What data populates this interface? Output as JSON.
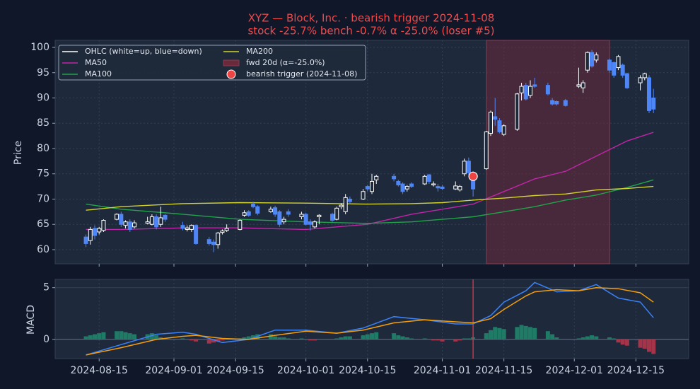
{
  "chart_data": [
    {
      "type": "candlestick",
      "title": "XYZ — Block, Inc. · bearish trigger 2024-11-08",
      "subtitle": "stock -25.7%   bench -0.7%   α -25.0% (loser #5)",
      "ylabel": "Price",
      "x": [
        "2024-08-12",
        "2024-08-13",
        "2024-08-14",
        "2024-08-15",
        "2024-08-16",
        "2024-08-19",
        "2024-08-20",
        "2024-08-21",
        "2024-08-22",
        "2024-08-23",
        "2024-08-26",
        "2024-08-27",
        "2024-08-28",
        "2024-08-29",
        "2024-08-30",
        "2024-09-03",
        "2024-09-04",
        "2024-09-05",
        "2024-09-06",
        "2024-09-09",
        "2024-09-10",
        "2024-09-11",
        "2024-09-12",
        "2024-09-13",
        "2024-09-16",
        "2024-09-17",
        "2024-09-18",
        "2024-09-19",
        "2024-09-20",
        "2024-09-23",
        "2024-09-24",
        "2024-09-25",
        "2024-09-26",
        "2024-09-27",
        "2024-09-30",
        "2024-10-01",
        "2024-10-02",
        "2024-10-03",
        "2024-10-04",
        "2024-10-07",
        "2024-10-08",
        "2024-10-09",
        "2024-10-10",
        "2024-10-11",
        "2024-10-14",
        "2024-10-15",
        "2024-10-16",
        "2024-10-17",
        "2024-10-21",
        "2024-10-22",
        "2024-10-23",
        "2024-10-24",
        "2024-10-25",
        "2024-10-28",
        "2024-10-29",
        "2024-10-30",
        "2024-10-31",
        "2024-11-01",
        "2024-11-04",
        "2024-11-05",
        "2024-11-06",
        "2024-11-07",
        "2024-11-08",
        "2024-11-11",
        "2024-11-12",
        "2024-11-13",
        "2024-11-14",
        "2024-11-15",
        "2024-11-18",
        "2024-11-19",
        "2024-11-20",
        "2024-11-21",
        "2024-11-22",
        "2024-11-25",
        "2024-11-26",
        "2024-11-27",
        "2024-11-29",
        "2024-12-02",
        "2024-12-03",
        "2024-12-04",
        "2024-12-05",
        "2024-12-06",
        "2024-12-09",
        "2024-12-10",
        "2024-12-11",
        "2024-12-12",
        "2024-12-13",
        "2024-12-16",
        "2024-12-17",
        "2024-12-18",
        "2024-12-19"
      ],
      "open": [
        62.5,
        61.8,
        64.2,
        63.5,
        63.8,
        66,
        67,
        64.8,
        65.5,
        64.5,
        65.2,
        65,
        66.5,
        65,
        66.8,
        64.8,
        64,
        64,
        64.8,
        62,
        61.5,
        61,
        63.4,
        63.8,
        64,
        66.8,
        67.5,
        69,
        68.5,
        67.5,
        68.3,
        67.5,
        65.5,
        67.5,
        66.5,
        67,
        65.5,
        64.5,
        66.5,
        67,
        66,
        68.5,
        67.5,
        70,
        70,
        72.5,
        71.5,
        73.8,
        74.5,
        73.5,
        73,
        72,
        73,
        73,
        74.8,
        72.8,
        72.5,
        72.4,
        72,
        71.8,
        75,
        77.5,
        75,
        76,
        83,
        86.3,
        85.5,
        82.8,
        83.8,
        91,
        92.5,
        90.5,
        92.6,
        92.5,
        89.5,
        89.3,
        89.5,
        92.3,
        92,
        95.5,
        99,
        97.5,
        97.5,
        97,
        96,
        96.5,
        94.8,
        93,
        94,
        94,
        90
      ],
      "high": [
        63,
        64.5,
        64.8,
        64.5,
        66,
        67.2,
        67.5,
        65.8,
        66,
        65.8,
        66.5,
        67,
        67,
        68.5,
        67,
        65.5,
        64.8,
        65,
        65,
        62.5,
        62,
        63.5,
        64,
        65,
        66,
        67.8,
        67.8,
        69.5,
        68.8,
        68.5,
        68.7,
        67.8,
        66.5,
        68,
        67.5,
        67.3,
        66,
        65.8,
        67,
        67.3,
        68.5,
        69.2,
        71,
        70.5,
        72,
        72.8,
        75,
        74.8,
        75,
        73.8,
        73.3,
        72.8,
        73.3,
        74.8,
        75,
        73.5,
        73,
        72.8,
        73.5,
        72.8,
        78,
        78.2,
        75.5,
        83.5,
        87.5,
        90,
        86,
        84.8,
        91,
        93,
        93,
        93.5,
        94,
        93,
        90,
        89.5,
        89.8,
        96,
        93.5,
        99.2,
        99.5,
        99,
        97.8,
        97.2,
        98.5,
        96.8,
        95,
        94.5,
        95,
        94.5,
        91.8
      ],
      "low": [
        60.5,
        61,
        62,
        63,
        63.5,
        65.8,
        64.5,
        64.2,
        63.5,
        64.2,
        65,
        64.8,
        64,
        64.5,
        65.5,
        63.8,
        63.6,
        63.5,
        61,
        60.8,
        59.5,
        60.2,
        63,
        63.5,
        63.8,
        66.5,
        66.5,
        68.2,
        66.8,
        67.3,
        66.5,
        64.5,
        65,
        66.5,
        66,
        64.8,
        63.8,
        64.2,
        65,
        65.5,
        65.8,
        68,
        67,
        69,
        69.8,
        71.5,
        71,
        73,
        73.5,
        72.5,
        71,
        71.5,
        72.2,
        72.8,
        73,
        72.5,
        71.5,
        71.8,
        71.8,
        71.5,
        74.5,
        74.8,
        70.5,
        75.8,
        82.5,
        84.5,
        83,
        82.5,
        83.5,
        89.5,
        89.5,
        90,
        92,
        90.5,
        88.5,
        88.5,
        88.3,
        92,
        91,
        95,
        96,
        97,
        95,
        94,
        95.5,
        94,
        91.8,
        91.5,
        93.5,
        87,
        87
      ],
      "close": [
        61.2,
        64,
        62.8,
        64.2,
        65.8,
        67,
        65,
        65.5,
        64,
        65.3,
        65.5,
        66.5,
        64.5,
        66.3,
        66,
        64.2,
        64.3,
        64.8,
        61.2,
        61.2,
        61,
        63.3,
        63.7,
        64.2,
        65.8,
        67.3,
        66.8,
        68.5,
        67.2,
        68,
        67,
        65,
        66,
        67,
        67,
        65,
        65,
        65.5,
        66.8,
        65.8,
        68.2,
        68.8,
        70.3,
        69.5,
        71.5,
        72,
        73.5,
        74.5,
        74,
        72.8,
        71.5,
        72.5,
        72.5,
        74.5,
        73.5,
        73,
        72.2,
        72.1,
        72.6,
        72.5,
        77.5,
        75.2,
        72,
        83.3,
        87.2,
        85.8,
        83.3,
        84.5,
        90.8,
        92.3,
        89.8,
        92.3,
        92.3,
        90.8,
        88.8,
        88.8,
        88.5,
        92.6,
        93,
        99,
        96.3,
        98.5,
        95.5,
        94.5,
        98.2,
        94.5,
        92,
        94,
        94.8,
        87.5,
        87.8
      ],
      "up_color": "#ffffff",
      "down_color": "#4f86f7",
      "ohlc_label": "OHLC (white=up, blue=down)",
      "series": [
        {
          "name": "MA50",
          "color": "#c026a8",
          "x": [
            "2024-08-12",
            "2024-08-20",
            "2024-09-03",
            "2024-09-16",
            "2024-10-01",
            "2024-10-15",
            "2024-10-25",
            "2024-11-01",
            "2024-11-08",
            "2024-11-15",
            "2024-11-22",
            "2024-11-29",
            "2024-12-06",
            "2024-12-13",
            "2024-12-19"
          ],
          "values": [
            64,
            64,
            64.3,
            64.3,
            64,
            65,
            67,
            68,
            69,
            71.5,
            74,
            75.5,
            78.5,
            81.5,
            83.2
          ]
        },
        {
          "name": "MA100",
          "color": "#22a34a",
          "x": [
            "2024-08-12",
            "2024-08-20",
            "2024-09-03",
            "2024-09-16",
            "2024-10-01",
            "2024-10-15",
            "2024-10-25",
            "2024-11-01",
            "2024-11-08",
            "2024-11-15",
            "2024-11-22",
            "2024-11-29",
            "2024-12-06",
            "2024-12-13",
            "2024-12-19"
          ],
          "values": [
            69,
            68,
            67,
            66,
            65.5,
            65.2,
            65.5,
            66,
            66.5,
            67.5,
            68.5,
            69.8,
            70.8,
            72.3,
            73.8
          ]
        },
        {
          "name": "MA200",
          "color": "#d4d42a",
          "x": [
            "2024-08-12",
            "2024-08-20",
            "2024-09-03",
            "2024-09-16",
            "2024-10-01",
            "2024-10-15",
            "2024-10-25",
            "2024-11-01",
            "2024-11-08",
            "2024-11-15",
            "2024-11-22",
            "2024-11-29",
            "2024-12-06",
            "2024-12-13",
            "2024-12-19"
          ],
          "values": [
            67.8,
            68.5,
            69.1,
            69.3,
            69.2,
            69,
            69.1,
            69.3,
            69.8,
            70.2,
            70.7,
            71,
            71.8,
            72.1,
            72.5
          ]
        }
      ],
      "shade": {
        "name": "fwd 20d (α=-25.0%)",
        "color": "#6b2a3c",
        "x": [
          "2024-11-11",
          "2024-12-09"
        ]
      },
      "marker": {
        "name": "bearish trigger (2024-11-08)",
        "x": "2024-11-08",
        "value": 74.5,
        "color": "#ef4444"
      },
      "xlim": [
        "2024-08-05",
        "2024-12-27"
      ],
      "ylim": [
        57.2,
        101.4
      ],
      "yticks": [
        60,
        65,
        70,
        75,
        80,
        85,
        90,
        95,
        100
      ],
      "grid": true,
      "legend": "upper left"
    },
    {
      "type": "macd",
      "ylabel": "MACD",
      "x": [
        "2024-08-12",
        "2024-08-13",
        "2024-08-14",
        "2024-08-15",
        "2024-08-16",
        "2024-08-19",
        "2024-08-20",
        "2024-08-21",
        "2024-08-22",
        "2024-08-23",
        "2024-08-26",
        "2024-08-27",
        "2024-08-28",
        "2024-08-29",
        "2024-08-30",
        "2024-09-03",
        "2024-09-04",
        "2024-09-05",
        "2024-09-06",
        "2024-09-09",
        "2024-09-10",
        "2024-09-11",
        "2024-09-12",
        "2024-09-13",
        "2024-09-16",
        "2024-09-17",
        "2024-09-18",
        "2024-09-19",
        "2024-09-20",
        "2024-09-23",
        "2024-09-24",
        "2024-09-25",
        "2024-09-26",
        "2024-09-27",
        "2024-09-30",
        "2024-10-01",
        "2024-10-02",
        "2024-10-03",
        "2024-10-04",
        "2024-10-07",
        "2024-10-08",
        "2024-10-09",
        "2024-10-10",
        "2024-10-11",
        "2024-10-14",
        "2024-10-15",
        "2024-10-16",
        "2024-10-17",
        "2024-10-21",
        "2024-10-22",
        "2024-10-23",
        "2024-10-24",
        "2024-10-25",
        "2024-10-28",
        "2024-10-29",
        "2024-10-30",
        "2024-10-31",
        "2024-11-01",
        "2024-11-04",
        "2024-11-05",
        "2024-11-06",
        "2024-11-07",
        "2024-11-08",
        "2024-11-11",
        "2024-11-12",
        "2024-11-13",
        "2024-11-14",
        "2024-11-15",
        "2024-11-18",
        "2024-11-19",
        "2024-11-20",
        "2024-11-21",
        "2024-11-22",
        "2024-11-25",
        "2024-11-26",
        "2024-11-27",
        "2024-11-29",
        "2024-12-02",
        "2024-12-03",
        "2024-12-04",
        "2024-12-05",
        "2024-12-06",
        "2024-12-09",
        "2024-12-10",
        "2024-12-11",
        "2024-12-12",
        "2024-12-13",
        "2024-12-16",
        "2024-12-17",
        "2024-12-18",
        "2024-12-19"
      ],
      "histogram": {
        "pos_color": "#1f7a66",
        "neg_color": "#a3344a",
        "values": [
          0.3,
          0.4,
          0.5,
          0.6,
          0.7,
          0.8,
          0.8,
          0.7,
          0.6,
          0.5,
          0.5,
          0.6,
          0.4,
          0.2,
          0.1,
          0.1,
          0,
          -0.1,
          -0.2,
          -0.4,
          -0.3,
          -0.2,
          -0.1,
          0,
          0.1,
          0.2,
          0.3,
          0.4,
          0.5,
          0.5,
          0.3,
          0.2,
          0.2,
          0.1,
          0.1,
          0,
          -0.1,
          -0.1,
          0,
          0,
          0.1,
          0.2,
          0.3,
          0.3,
          0.4,
          0.5,
          0.6,
          0.7,
          0.6,
          0.4,
          0.3,
          0.2,
          0.1,
          0.1,
          0,
          -0.1,
          -0.1,
          -0.2,
          -0.2,
          -0.1,
          0.1,
          0.1,
          0.2,
          0.6,
          0.9,
          1.2,
          1.1,
          1,
          1.2,
          1.4,
          1.3,
          1.2,
          1.1,
          0.8,
          0.5,
          0.2,
          0,
          0.1,
          0.2,
          0.3,
          0.4,
          0.3,
          0.2,
          0.1,
          -0.3,
          -0.5,
          -0.6,
          -0.8,
          -0.9,
          -1.2,
          -1.4
        ]
      },
      "lines": [
        {
          "color": "#3b82f6",
          "x": [
            "2024-08-12",
            "2024-08-20",
            "2024-08-28",
            "2024-09-03",
            "2024-09-06",
            "2024-09-12",
            "2024-09-18",
            "2024-09-24",
            "2024-10-01",
            "2024-10-08",
            "2024-10-14",
            "2024-10-21",
            "2024-10-28",
            "2024-11-04",
            "2024-11-08",
            "2024-11-12",
            "2024-11-15",
            "2024-11-20",
            "2024-11-22",
            "2024-11-27",
            "2024-12-02",
            "2024-12-06",
            "2024-12-11",
            "2024-12-16",
            "2024-12-19"
          ],
          "values": [
            -1.5,
            -0.5,
            0.5,
            0.7,
            0.5,
            -0.3,
            0,
            0.9,
            0.9,
            0.6,
            1.1,
            2.2,
            1.9,
            1.5,
            1.5,
            2.3,
            3.6,
            4.7,
            5.5,
            4.6,
            4.7,
            5.3,
            4.0,
            3.6,
            2.1
          ]
        },
        {
          "color": "#f59e0b",
          "x": [
            "2024-08-12",
            "2024-08-20",
            "2024-08-28",
            "2024-09-03",
            "2024-09-06",
            "2024-09-12",
            "2024-09-18",
            "2024-09-24",
            "2024-10-01",
            "2024-10-08",
            "2024-10-14",
            "2024-10-21",
            "2024-10-28",
            "2024-11-04",
            "2024-11-08",
            "2024-11-12",
            "2024-11-15",
            "2024-11-20",
            "2024-11-22",
            "2024-11-27",
            "2024-12-02",
            "2024-12-06",
            "2024-12-11",
            "2024-12-16",
            "2024-12-19"
          ],
          "values": [
            -1.5,
            -0.8,
            0,
            0.3,
            0.4,
            0.1,
            0,
            0.4,
            0.8,
            0.6,
            0.9,
            1.6,
            1.9,
            1.7,
            1.6,
            2.0,
            2.9,
            4.2,
            4.6,
            4.8,
            4.7,
            5.0,
            4.9,
            4.5,
            3.6
          ]
        }
      ],
      "trigger": {
        "x": "2024-11-08",
        "color": "#c0394a"
      },
      "xlim": [
        "2024-08-05",
        "2024-12-27"
      ],
      "xticks": [
        "2024-08-15",
        "2024-09-01",
        "2024-09-15",
        "2024-10-01",
        "2024-10-15",
        "2024-11-01",
        "2024-11-15",
        "2024-12-01",
        "2024-12-15"
      ],
      "ylim": [
        -1.85,
        5.8
      ],
      "yticks": [
        0,
        5
      ],
      "grid": true
    }
  ]
}
